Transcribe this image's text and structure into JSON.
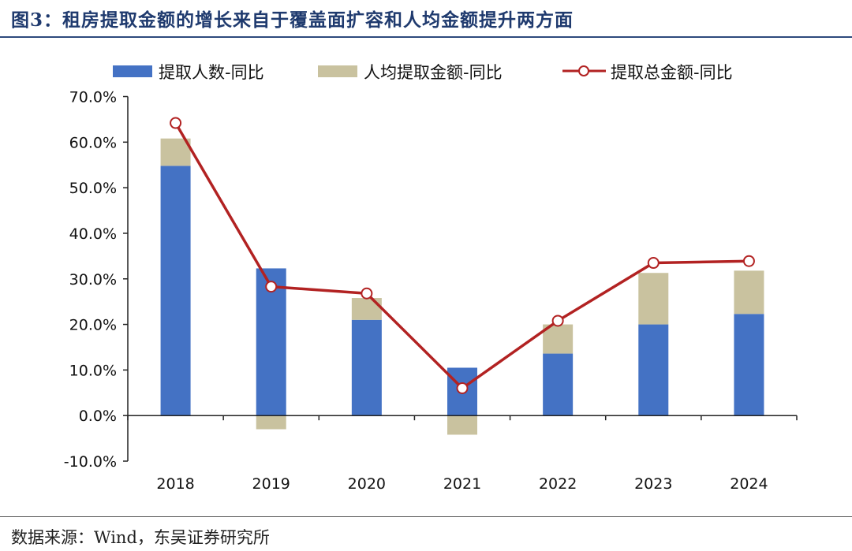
{
  "page": {
    "title": "图3：租房提取金额的增长来自于覆盖面扩容和人均金额提升两方面",
    "source": "数据来源：Wind，东吴证券研究所"
  },
  "chart_data": {
    "type": "bar",
    "stacked": true,
    "categories": [
      "2018",
      "2019",
      "2020",
      "2021",
      "2022",
      "2023",
      "2024"
    ],
    "series": [
      {
        "name": "提取人数-同比",
        "kind": "bar",
        "color": "#4472c4",
        "values": [
          54.8,
          32.3,
          21.0,
          10.5,
          13.6,
          20.0,
          22.3
        ]
      },
      {
        "name": "人均提取金额-同比",
        "kind": "bar",
        "color": "#c9c29f",
        "values": [
          6.0,
          -3.0,
          4.8,
          -4.2,
          6.4,
          11.3,
          9.5
        ]
      },
      {
        "name": "提取总金额-同比",
        "kind": "line",
        "color": "#b22222",
        "values": [
          64.2,
          28.3,
          26.8,
          6.0,
          20.8,
          33.5,
          33.9
        ]
      }
    ],
    "ylim": [
      -10,
      70
    ],
    "yticks": [
      -10,
      0,
      10,
      20,
      30,
      40,
      50,
      60,
      70
    ],
    "ytick_labels": [
      "-10.0%",
      "0.0%",
      "10.0%",
      "20.0%",
      "30.0%",
      "40.0%",
      "50.0%",
      "60.0%",
      "70.0%"
    ],
    "ylabel": "",
    "xlabel": "",
    "grid": false,
    "legend_position": "top"
  }
}
